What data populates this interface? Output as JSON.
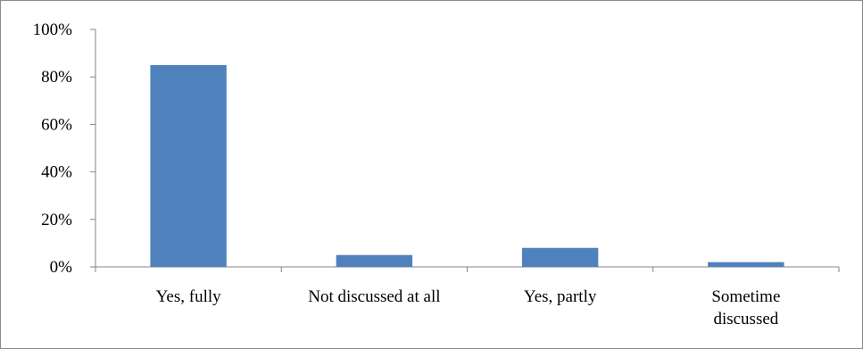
{
  "chart_data": {
    "type": "bar",
    "categories": [
      [
        "Yes, fully"
      ],
      [
        "Not discussed at all"
      ],
      [
        "Yes, partly"
      ],
      [
        "Sometime",
        "discussed"
      ]
    ],
    "values": [
      85,
      5,
      8,
      2
    ],
    "title": "",
    "xlabel": "",
    "ylabel": "",
    "ylim": [
      0,
      100
    ],
    "yticks": [
      "0%",
      "20%",
      "40%",
      "60%",
      "80%",
      "100%"
    ],
    "grid": false,
    "legend": "none",
    "bar_color": "#4F81BD",
    "axis_color": "#868686"
  }
}
